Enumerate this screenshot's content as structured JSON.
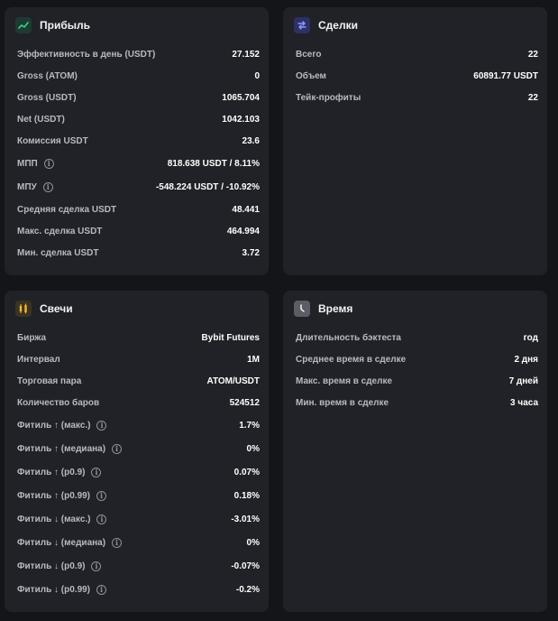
{
  "profit": {
    "title": "Прибыль",
    "icon": "trend-up-icon",
    "accent": "#35d48a",
    "rows": [
      {
        "label": "Эффективность в день (USDT)",
        "value": "27.152"
      },
      {
        "label": "Gross (ATOM)",
        "value": "0"
      },
      {
        "label": "Gross (USDT)",
        "value": "1065.704"
      },
      {
        "label": "Net (USDT)",
        "value": "1042.103"
      },
      {
        "label": "Комиссия USDT",
        "value": "23.6"
      },
      {
        "label": "МПП",
        "value": "818.638 USDT / 8.11%",
        "info": true
      },
      {
        "label": "МПУ",
        "value": "-548.224 USDT / -10.92%",
        "info": true
      },
      {
        "label": "Средняя сделка USDT",
        "value": "48.441"
      },
      {
        "label": "Макс. сделка USDT",
        "value": "464.994"
      },
      {
        "label": "Мин. сделка USDT",
        "value": "3.72"
      }
    ]
  },
  "deals": {
    "title": "Сделки",
    "icon": "swap-arrows-icon",
    "accent": "#6f7cf2",
    "rows": [
      {
        "label": "Всего",
        "value": "22"
      },
      {
        "label": "Объем",
        "value": "60891.77 USDT"
      },
      {
        "label": "Тейк-профиты",
        "value": "22"
      }
    ]
  },
  "candles": {
    "title": "Свечи",
    "icon": "candlestick-icon",
    "accent": "#f5b931",
    "rows": [
      {
        "label": "Биржа",
        "value": "Bybit Futures"
      },
      {
        "label": "Интервал",
        "value": "1M"
      },
      {
        "label": "Торговая пара",
        "value": "ATOM/USDT"
      },
      {
        "label": "Количество баров",
        "value": "524512"
      },
      {
        "label": "Фитиль ↑ (макс.)",
        "value": "1.7%",
        "info": true
      },
      {
        "label": "Фитиль ↑ (медиана)",
        "value": "0%",
        "info": true
      },
      {
        "label": "Фитиль ↑ (p0.9)",
        "value": "0.07%",
        "info": true
      },
      {
        "label": "Фитиль ↑ (p0.99)",
        "value": "0.18%",
        "info": true
      },
      {
        "label": "Фитиль ↓ (макс.)",
        "value": "-3.01%",
        "info": true
      },
      {
        "label": "Фитиль ↓ (медиана)",
        "value": "0%",
        "info": true
      },
      {
        "label": "Фитиль ↓ (p0.9)",
        "value": "-0.07%",
        "info": true
      },
      {
        "label": "Фитиль ↓ (p0.99)",
        "value": "-0.2%",
        "info": true
      }
    ]
  },
  "time": {
    "title": "Время",
    "icon": "clock-icon",
    "accent": "#c9cbd2",
    "rows": [
      {
        "label": "Длительность бэктеста",
        "value": "год"
      },
      {
        "label": "Среднее время в сделке",
        "value": "2 дня"
      },
      {
        "label": "Макс. время в сделке",
        "value": "7 дней"
      },
      {
        "label": "Мин. время в сделке",
        "value": "3 часа"
      }
    ]
  }
}
